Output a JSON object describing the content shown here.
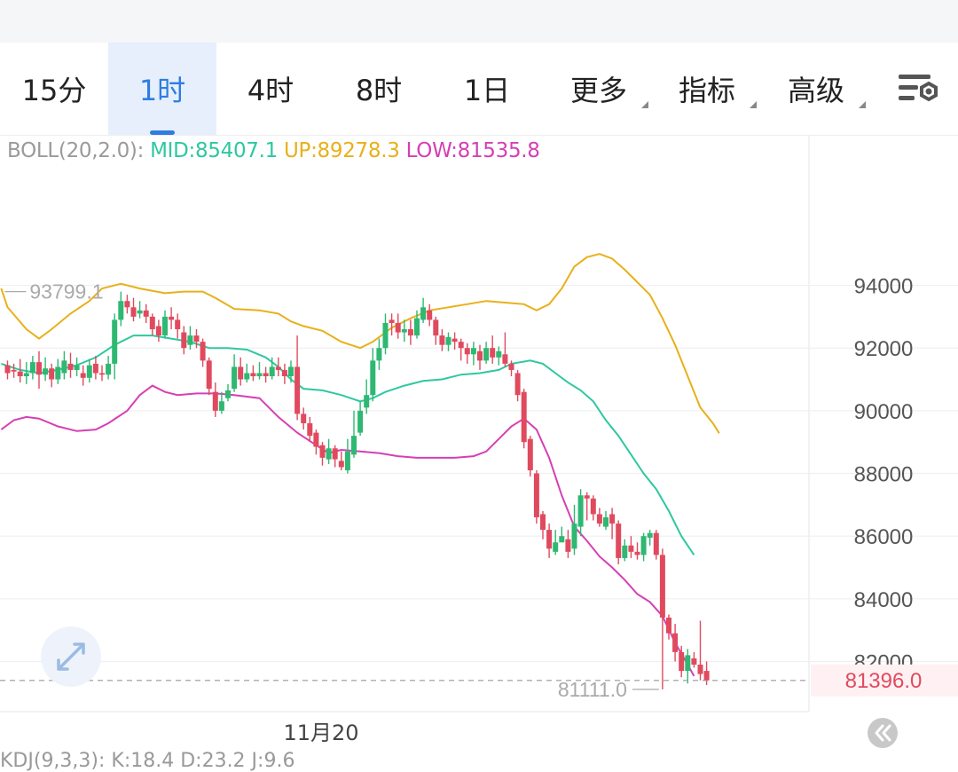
{
  "tabs": [
    {
      "label": "15分",
      "active": false,
      "dropdown": false
    },
    {
      "label": "1时",
      "active": true,
      "dropdown": false
    },
    {
      "label": "4时",
      "active": false,
      "dropdown": false
    },
    {
      "label": "8时",
      "active": false,
      "dropdown": false
    },
    {
      "label": "1日",
      "active": false,
      "dropdown": false
    },
    {
      "label": "更多",
      "active": false,
      "dropdown": true
    },
    {
      "label": "指标",
      "active": false,
      "dropdown": true
    },
    {
      "label": "高级",
      "active": false,
      "dropdown": true
    }
  ],
  "settings_icon": "chart-settings-icon",
  "indicator": {
    "name": "BOLL(20,2.0):",
    "mid": "MID:85407.1",
    "up": "UP:89278.3",
    "low": "LOW:81535.8"
  },
  "bottom_indicator": "KDJ(9,3,3): K:18.4 D:23.2 J:9.6",
  "colors": {
    "up_candle": "#2eb872",
    "down_candle": "#e04a5e",
    "mid": "#2ec8a0",
    "upper": "#e8b01a",
    "lower": "#d63fb4",
    "active_tab": "#2f7de1",
    "price_label": "#e04a5e"
  },
  "chart_data": {
    "type": "candlestick",
    "y_ticks": [
      94000,
      92000,
      90000,
      88000,
      86000,
      84000,
      82000
    ],
    "ylim": [
      80400,
      98800
    ],
    "x_label": "11月20",
    "high_annotation": "93799.1",
    "low_annotation": "81111.0",
    "current_price": "81396.0",
    "current_price_value": 81396,
    "candles": [
      [
        91450,
        91200,
        91600,
        91000
      ],
      [
        91300,
        91250,
        91500,
        91050
      ],
      [
        91250,
        91100,
        91650,
        90900
      ],
      [
        91100,
        91200,
        91550,
        90850
      ],
      [
        91200,
        91550,
        91750,
        91000
      ],
      [
        91550,
        91150,
        91900,
        90700
      ],
      [
        91150,
        91350,
        91700,
        90950
      ],
      [
        91350,
        91000,
        91500,
        90750
      ],
      [
        91000,
        91400,
        91650,
        90850
      ],
      [
        91200,
        91600,
        91900,
        91000
      ],
      [
        91500,
        91300,
        91850,
        91050
      ],
      [
        91300,
        91450,
        91700,
        91100
      ],
      [
        91200,
        91050,
        91450,
        90800
      ],
      [
        91050,
        91450,
        91650,
        90900
      ],
      [
        91500,
        91200,
        91750,
        91000
      ],
      [
        91200,
        91150,
        91450,
        90950
      ],
      [
        91150,
        91500,
        91750,
        91000
      ],
      [
        91500,
        92900,
        93100,
        91000
      ],
      [
        92900,
        93500,
        93799,
        92700
      ],
      [
        93500,
        93300,
        93700,
        93100
      ],
      [
        93300,
        93000,
        93600,
        92850
      ],
      [
        93100,
        93200,
        93500,
        92950
      ],
      [
        93200,
        93000,
        93400,
        92800
      ],
      [
        93000,
        92600,
        93100,
        92400
      ],
      [
        92700,
        92400,
        92900,
        92200
      ],
      [
        92400,
        93000,
        93200,
        92300
      ],
      [
        93000,
        92900,
        93300,
        92600
      ],
      [
        92900,
        92600,
        93100,
        92300
      ],
      [
        92500,
        92000,
        92700,
        91800
      ],
      [
        92100,
        92400,
        92700,
        91950
      ],
      [
        92400,
        92200,
        92600,
        92000
      ],
      [
        92200,
        91600,
        92300,
        91400
      ],
      [
        91600,
        90700,
        91700,
        90500
      ],
      [
        90600,
        90000,
        90900,
        89800
      ],
      [
        90000,
        90300,
        90600,
        89900
      ],
      [
        90400,
        90650,
        90850,
        90300
      ],
      [
        90700,
        91400,
        91800,
        90600
      ],
      [
        91400,
        91000,
        91700,
        90800
      ],
      [
        91000,
        91200,
        91500,
        90900
      ],
      [
        91200,
        91100,
        91450,
        90950
      ],
      [
        91100,
        91200,
        91550,
        91000
      ],
      [
        91200,
        91100,
        91400,
        90900
      ],
      [
        91100,
        91400,
        91700,
        91000
      ],
      [
        91400,
        91300,
        91700,
        91100
      ],
      [
        91300,
        91100,
        91500,
        90850
      ],
      [
        91100,
        91400,
        91600,
        90900
      ],
      [
        91400,
        89900,
        92400,
        89700
      ],
      [
        89900,
        89600,
        90100,
        89400
      ],
      [
        89600,
        89200,
        89800,
        89000
      ],
      [
        89300,
        88850,
        89400,
        88600
      ],
      [
        88900,
        88500,
        89000,
        88250
      ],
      [
        88450,
        88800,
        89100,
        88300
      ],
      [
        88800,
        88450,
        88900,
        88200
      ],
      [
        88400,
        88200,
        88700,
        88100
      ],
      [
        88100,
        88700,
        89100,
        88000
      ],
      [
        88600,
        89200,
        90000,
        88500
      ],
      [
        89300,
        90000,
        90300,
        89200
      ],
      [
        90100,
        90500,
        91000,
        89900
      ],
      [
        90500,
        91600,
        92000,
        90300
      ],
      [
        91600,
        92000,
        92300,
        91300
      ],
      [
        92000,
        92800,
        93100,
        91800
      ],
      [
        92900,
        92800,
        93100,
        92400
      ],
      [
        92800,
        92500,
        93100,
        92300
      ],
      [
        92500,
        92600,
        92900,
        92200
      ],
      [
        92600,
        92400,
        92900,
        92100
      ],
      [
        92400,
        92950,
        93200,
        92300
      ],
      [
        92900,
        93300,
        93600,
        92800
      ],
      [
        93200,
        92900,
        93400,
        92700
      ],
      [
        92900,
        92400,
        93000,
        92100
      ],
      [
        92400,
        92100,
        92600,
        91900
      ],
      [
        92100,
        92350,
        92500,
        91900
      ],
      [
        92300,
        92200,
        92500,
        91950
      ],
      [
        92200,
        92000,
        92300,
        91600
      ],
      [
        92000,
        91800,
        92150,
        91500
      ],
      [
        91800,
        92000,
        92200,
        91450
      ],
      [
        91900,
        91600,
        92100,
        91300
      ],
      [
        91600,
        92000,
        92200,
        91500
      ],
      [
        92000,
        91700,
        92400,
        91500
      ],
      [
        91700,
        91900,
        92050,
        91450
      ],
      [
        91800,
        91500,
        92500,
        91400
      ],
      [
        91500,
        91300,
        91600,
        91100
      ],
      [
        91200,
        90500,
        91300,
        90300
      ],
      [
        90600,
        89000,
        90700,
        88800
      ],
      [
        89100,
        88100,
        89200,
        87900
      ],
      [
        88000,
        86600,
        88100,
        86400
      ],
      [
        86700,
        86200,
        86800,
        85900
      ],
      [
        86200,
        85600,
        86400,
        85300
      ],
      [
        85500,
        85800,
        86200,
        85400
      ],
      [
        85800,
        86000,
        86300,
        85800
      ],
      [
        85900,
        85500,
        86200,
        85300
      ],
      [
        85600,
        86400,
        87000,
        85400
      ],
      [
        86300,
        87300,
        87500,
        86000
      ],
      [
        87300,
        87200,
        87400,
        86500
      ],
      [
        87200,
        86700,
        87300,
        86500
      ],
      [
        86700,
        86400,
        86900,
        86300
      ],
      [
        86300,
        86600,
        86800,
        86200
      ],
      [
        86700,
        86400,
        86900,
        85900
      ],
      [
        86400,
        85300,
        86500,
        85100
      ],
      [
        85300,
        85700,
        85900,
        85200
      ],
      [
        85700,
        85500,
        86000,
        85300
      ],
      [
        85500,
        85400,
        85800,
        85250
      ],
      [
        85400,
        86000,
        86100,
        85200
      ],
      [
        85950,
        86100,
        86200,
        85700
      ],
      [
        86100,
        85400,
        86200,
        85250
      ],
      [
        85400,
        83400,
        85600,
        81111
      ],
      [
        83400,
        82900,
        83500,
        82700
      ],
      [
        82900,
        82300,
        83200,
        82000
      ],
      [
        82300,
        81700,
        82500,
        81500
      ],
      [
        81700,
        82200,
        82400,
        81300
      ],
      [
        82100,
        81900,
        82300,
        81800
      ],
      [
        81900,
        81600,
        83300,
        81400
      ],
      [
        81700,
        81396,
        82000,
        81250
      ]
    ],
    "upper_band": [
      [
        -1,
        93900
      ],
      [
        0,
        93300
      ],
      [
        3,
        92600
      ],
      [
        5,
        92300
      ],
      [
        7,
        92600
      ],
      [
        10,
        93100
      ],
      [
        13,
        93500
      ],
      [
        15,
        93900
      ],
      [
        18,
        94050
      ],
      [
        21,
        93900
      ],
      [
        25,
        93750
      ],
      [
        28,
        93800
      ],
      [
        31,
        93800
      ],
      [
        33,
        93600
      ],
      [
        36,
        93250
      ],
      [
        40,
        93200
      ],
      [
        43,
        93100
      ],
      [
        45,
        92850
      ],
      [
        47,
        92700
      ],
      [
        50,
        92550
      ],
      [
        53,
        92200
      ],
      [
        56,
        92000
      ],
      [
        58,
        92200
      ],
      [
        61,
        92650
      ],
      [
        64,
        92950
      ],
      [
        67,
        93200
      ],
      [
        70,
        93300
      ],
      [
        73,
        93400
      ],
      [
        76,
        93500
      ],
      [
        79,
        93450
      ],
      [
        82,
        93400
      ],
      [
        84,
        93200
      ],
      [
        86,
        93400
      ],
      [
        88,
        93900
      ],
      [
        90,
        94600
      ],
      [
        92,
        94900
      ],
      [
        94,
        95000
      ],
      [
        96,
        94850
      ],
      [
        98,
        94500
      ],
      [
        100,
        94100
      ],
      [
        102,
        93700
      ],
      [
        104,
        92950
      ],
      [
        106,
        92100
      ],
      [
        108,
        91100
      ],
      [
        110,
        90100
      ],
      [
        112,
        89600
      ],
      [
        113,
        89280
      ]
    ],
    "mid_band": [
      [
        -1,
        91500
      ],
      [
        2,
        91300
      ],
      [
        5,
        91200
      ],
      [
        8,
        91300
      ],
      [
        11,
        91450
      ],
      [
        14,
        91700
      ],
      [
        17,
        92100
      ],
      [
        20,
        92400
      ],
      [
        23,
        92400
      ],
      [
        26,
        92300
      ],
      [
        29,
        92200
      ],
      [
        32,
        92000
      ],
      [
        35,
        92000
      ],
      [
        38,
        91950
      ],
      [
        41,
        91700
      ],
      [
        43,
        91400
      ],
      [
        45,
        91000
      ],
      [
        47,
        90700
      ],
      [
        50,
        90650
      ],
      [
        53,
        90500
      ],
      [
        56,
        90300
      ],
      [
        58,
        90400
      ],
      [
        60,
        90600
      ],
      [
        63,
        90800
      ],
      [
        66,
        90950
      ],
      [
        69,
        91000
      ],
      [
        72,
        91150
      ],
      [
        75,
        91200
      ],
      [
        78,
        91300
      ],
      [
        80,
        91500
      ],
      [
        83,
        91600
      ],
      [
        85,
        91500
      ],
      [
        87,
        91200
      ],
      [
        89,
        90900
      ],
      [
        91,
        90650
      ],
      [
        93,
        90300
      ],
      [
        95,
        89700
      ],
      [
        97,
        89200
      ],
      [
        99,
        88600
      ],
      [
        101,
        88000
      ],
      [
        103,
        87500
      ],
      [
        105,
        86800
      ],
      [
        107,
        86000
      ],
      [
        109,
        85400
      ]
    ],
    "lower_band": [
      [
        -1,
        89400
      ],
      [
        1,
        89700
      ],
      [
        3,
        89800
      ],
      [
        5,
        89750
      ],
      [
        8,
        89500
      ],
      [
        11,
        89350
      ],
      [
        14,
        89400
      ],
      [
        16,
        89600
      ],
      [
        19,
        90000
      ],
      [
        21,
        90500
      ],
      [
        23,
        90800
      ],
      [
        25,
        90600
      ],
      [
        27,
        90500
      ],
      [
        30,
        90550
      ],
      [
        33,
        90550
      ],
      [
        36,
        90500
      ],
      [
        40,
        90400
      ],
      [
        43,
        89800
      ],
      [
        46,
        89300
      ],
      [
        49,
        88900
      ],
      [
        51,
        88650
      ],
      [
        53,
        88750
      ],
      [
        56,
        88700
      ],
      [
        59,
        88650
      ],
      [
        62,
        88550
      ],
      [
        65,
        88500
      ],
      [
        68,
        88500
      ],
      [
        71,
        88500
      ],
      [
        74,
        88550
      ],
      [
        76,
        88700
      ],
      [
        78,
        89100
      ],
      [
        80,
        89500
      ],
      [
        82,
        89750
      ],
      [
        84,
        89400
      ],
      [
        86,
        88500
      ],
      [
        88,
        87300
      ],
      [
        90,
        86300
      ],
      [
        92,
        85850
      ],
      [
        94,
        85350
      ],
      [
        96,
        85000
      ],
      [
        98,
        84600
      ],
      [
        100,
        84150
      ],
      [
        102,
        83900
      ],
      [
        104,
        83450
      ],
      [
        106,
        82600
      ],
      [
        108,
        81900
      ],
      [
        109,
        81535
      ]
    ]
  }
}
